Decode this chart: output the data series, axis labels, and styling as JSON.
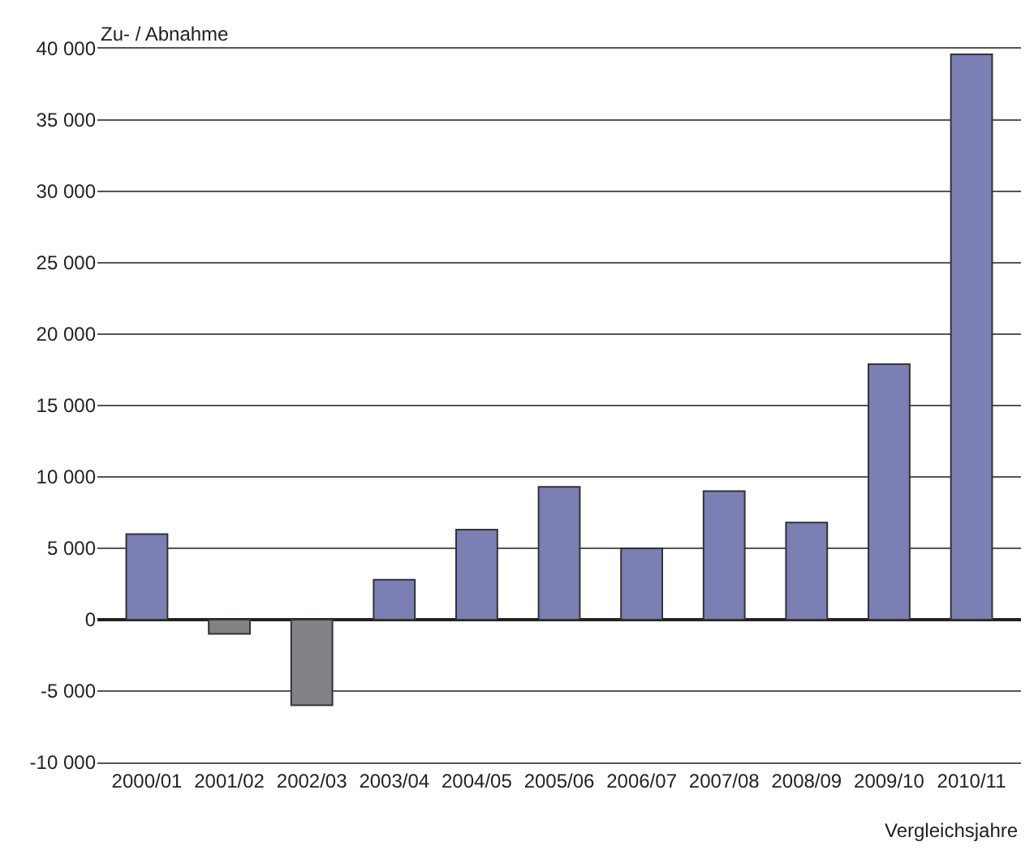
{
  "chart_data": {
    "type": "bar",
    "ylabel": "Zu- / Abnahme",
    "xlabel": "Vergleichsjahre",
    "categories": [
      "2000/01",
      "2001/02",
      "2002/03",
      "2003/04",
      "2004/05",
      "2005/06",
      "2006/07",
      "2007/08",
      "2008/09",
      "2009/10",
      "2010/11"
    ],
    "values": [
      6000,
      -1000,
      -6000,
      2800,
      6300,
      9300,
      5000,
      9000,
      6800,
      17900,
      39600
    ],
    "colors": [
      "#7b7fb3",
      "#808285",
      "#808285",
      "#7b7fb3",
      "#7b7fb3",
      "#7b7fb3",
      "#7b7fb3",
      "#7b7fb3",
      "#7b7fb3",
      "#7b7fb3",
      "#7b7fb3"
    ],
    "ylim": [
      -10000,
      40000
    ],
    "yticks": [
      {
        "value": -10000,
        "label": "-10 000"
      },
      {
        "value": -5000,
        "label": "-5 000"
      },
      0,
      {
        "value": 5000,
        "label": "5 000"
      },
      {
        "value": 10000,
        "label": "10 000"
      },
      {
        "value": 15000,
        "label": "15 000"
      },
      {
        "value": 20000,
        "label": "20 000"
      },
      {
        "value": 25000,
        "label": "25 000"
      },
      {
        "value": 30000,
        "label": "30 000"
      },
      {
        "value": 35000,
        "label": "35 000"
      },
      {
        "value": 40000,
        "label": "40 000"
      }
    ],
    "grid": "y"
  }
}
